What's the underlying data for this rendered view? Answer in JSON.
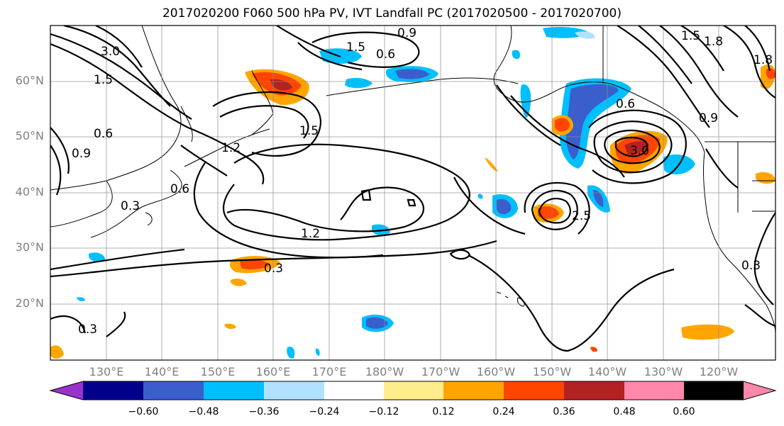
{
  "title": "2017020200 F060 500 hPa PV, IVT Landfall PC (2017020500 - 2017020700)",
  "lat_labels": [
    "60°N",
    "50°N",
    "40°N",
    "30°N",
    "20°N"
  ],
  "lon_labels": [
    "130°E",
    "140°E",
    "150°E",
    "160°E",
    "170°E",
    "180°W",
    "170°W",
    "160°W",
    "150°W",
    "140°W",
    "130°W",
    "120°W"
  ],
  "colorbar": {
    "colors": [
      "#9933cc",
      "#00008b",
      "#3a5fcd",
      "#00bfff",
      "#b0e2ff",
      "#ffffff",
      "#ffec8b",
      "#ffa500",
      "#ff4500",
      "#b22222",
      "#ff88aa"
    ],
    "tick_labels": [
      "−0.60",
      "−0.48",
      "−0.36",
      "−0.24",
      "−0.12",
      "0.12",
      "0.24",
      "0.36",
      "0.48",
      "0.60"
    ]
  },
  "contour_labels": [
    "3.0",
    "1.5",
    "0.6",
    "0.9",
    "1.2",
    "1.5",
    "0.6",
    "0.3",
    "1.2",
    "0.3",
    "1.5",
    "0.6",
    "0.9",
    "1.5",
    "1.8",
    "0.6",
    "0.9",
    "3.0",
    "2.5",
    "0.3",
    "0.3",
    "1.8"
  ]
}
